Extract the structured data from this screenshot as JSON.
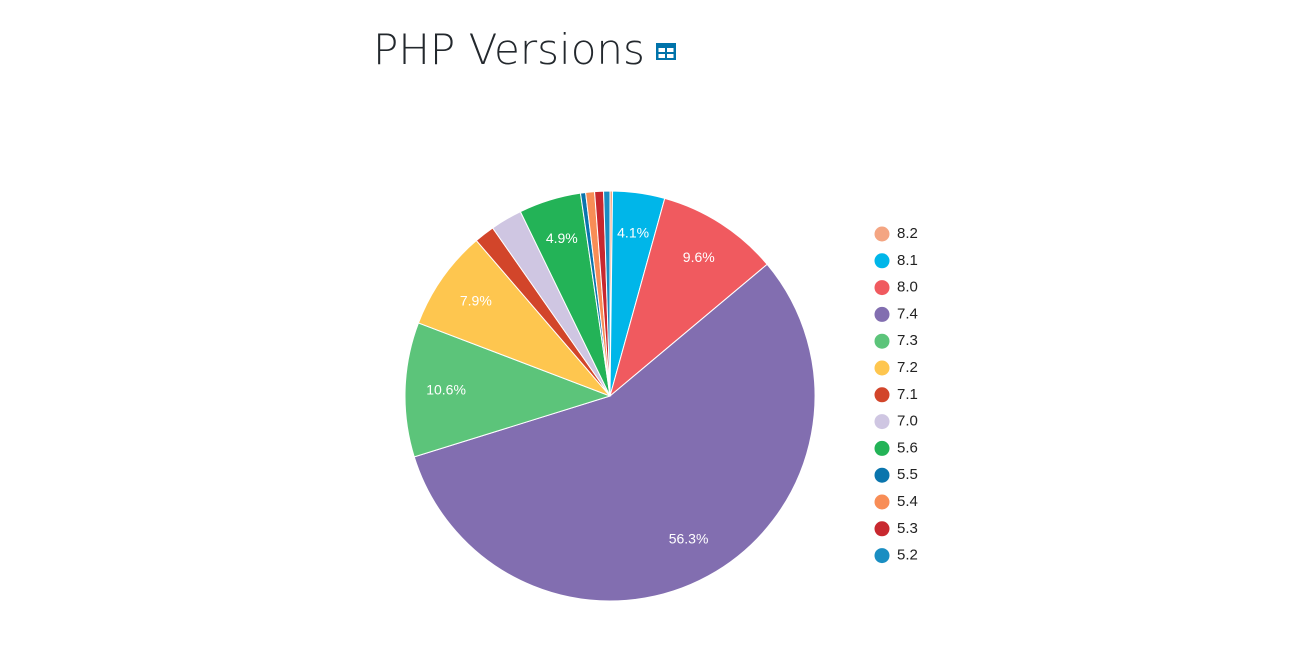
{
  "chart_data": {
    "type": "pie",
    "title": "PHP Versions",
    "categories": [
      "8.2",
      "8.1",
      "8.0",
      "7.4",
      "7.3",
      "7.2",
      "7.1",
      "7.0",
      "5.6",
      "5.5",
      "5.4",
      "5.3",
      "5.2"
    ],
    "values": [
      0.2,
      4.1,
      9.6,
      56.3,
      10.6,
      7.9,
      1.6,
      2.5,
      4.9,
      0.4,
      0.7,
      0.7,
      0.5
    ],
    "value_labels": [
      null,
      "4.1%",
      "9.6%",
      "56.3%",
      "10.6%",
      "7.9%",
      null,
      null,
      "4.9%",
      null,
      null,
      null,
      null
    ],
    "colors": [
      "#f4a582",
      "#00b6e9",
      "#f05a5f",
      "#826eb0",
      "#5cc47a",
      "#fec64f",
      "#d2452a",
      "#cfc6e2",
      "#23b357",
      "#0a75ad",
      "#f88d56",
      "#c8282f",
      "#1a8ec2"
    ],
    "legend": "right"
  }
}
